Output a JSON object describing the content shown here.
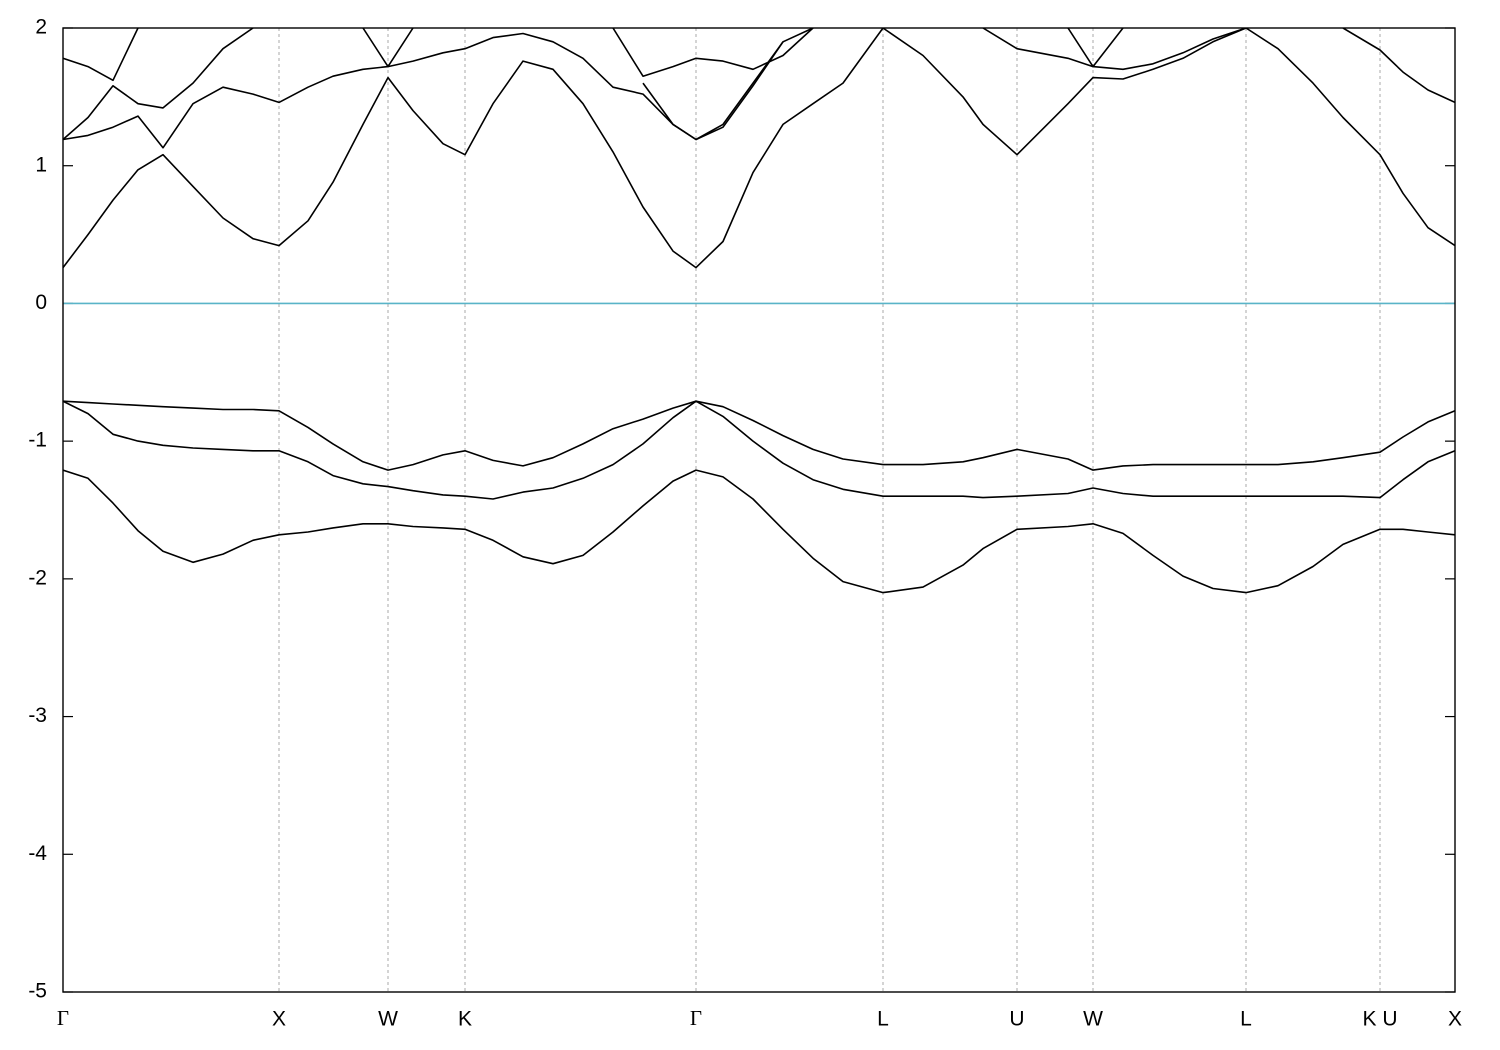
{
  "chart_data": {
    "type": "line",
    "x": [
      0,
      0.25,
      0.5,
      0.75,
      1.0,
      1.3,
      1.6,
      1.9,
      2.16,
      2.45,
      2.7,
      3.0,
      3.25,
      3.5,
      3.8,
      4.02,
      4.3,
      4.6,
      4.9,
      5.2,
      5.5,
      5.8,
      6.1,
      6.33,
      6.6,
      6.9,
      7.2,
      7.5,
      7.8,
      8.2,
      8.6,
      9.0,
      9.2,
      9.54,
      10.05,
      10.3,
      10.6,
      10.9,
      11.2,
      11.5,
      11.83,
      12.15,
      12.5,
      12.8,
      13.17,
      13.4,
      13.65,
      13.92
    ],
    "series": [
      {
        "color": "#000000",
        "values": [
          -0.71,
          -0.72,
          -0.73,
          -0.74,
          -0.75,
          -0.76,
          -0.77,
          -0.77,
          -0.78,
          -0.9,
          -1.02,
          -1.15,
          -1.21,
          -1.17,
          -1.1,
          -1.07,
          -1.14,
          -1.18,
          -1.12,
          -1.02,
          -0.91,
          -0.84,
          -0.76,
          -0.71,
          -0.75,
          -0.85,
          -0.96,
          -1.06,
          -1.13,
          -1.17,
          -1.17,
          -1.15,
          -1.12,
          -1.06,
          -1.13,
          -1.21,
          -1.18,
          -1.17,
          -1.17,
          -1.17,
          -1.17,
          -1.17,
          -1.15,
          -1.12,
          -1.08,
          -0.97,
          -0.86,
          -0.78
        ]
      },
      {
        "color": "#000000",
        "values": [
          -0.71,
          -0.8,
          -0.95,
          -1.0,
          -1.03,
          -1.05,
          -1.06,
          -1.07,
          -1.07,
          -1.15,
          -1.25,
          -1.31,
          -1.33,
          -1.36,
          -1.39,
          -1.4,
          -1.42,
          -1.37,
          -1.34,
          -1.27,
          -1.17,
          -1.02,
          -0.83,
          -0.71,
          -0.82,
          -1.0,
          -1.16,
          -1.28,
          -1.35,
          -1.4,
          -1.4,
          -1.4,
          -1.41,
          -1.4,
          -1.38,
          -1.34,
          -1.38,
          -1.4,
          -1.4,
          -1.4,
          -1.4,
          -1.4,
          -1.4,
          -1.4,
          -1.41,
          -1.28,
          -1.15,
          -1.07
        ]
      },
      {
        "color": "#000000",
        "values": [
          -1.21,
          -1.27,
          -1.45,
          -1.65,
          -1.8,
          -1.88,
          -1.82,
          -1.72,
          -1.68,
          -1.66,
          -1.63,
          -1.6,
          -1.6,
          -1.62,
          -1.63,
          -1.64,
          -1.72,
          -1.84,
          -1.89,
          -1.83,
          -1.66,
          -1.47,
          -1.29,
          -1.21,
          -1.26,
          -1.42,
          -1.64,
          -1.85,
          -2.02,
          -2.1,
          -2.06,
          -1.9,
          -1.78,
          -1.64,
          -1.62,
          -1.6,
          -1.67,
          -1.83,
          -1.98,
          -2.07,
          -2.1,
          -2.05,
          -1.91,
          -1.75,
          -1.64,
          -1.64,
          -1.66,
          -1.68
        ]
      },
      {
        "color": "#000000",
        "values": [
          0.26,
          0.5,
          0.75,
          0.97,
          1.08,
          0.85,
          0.62,
          0.47,
          0.42,
          0.6,
          0.88,
          1.3,
          1.64,
          1.4,
          1.16,
          1.08,
          1.45,
          1.76,
          1.7,
          1.45,
          1.1,
          0.7,
          0.38,
          0.26,
          0.45,
          0.95,
          1.3,
          1.45,
          1.6,
          2.0,
          1.8,
          1.5,
          1.3,
          1.08,
          1.45,
          1.64,
          1.63,
          1.7,
          1.78,
          1.9,
          2.0,
          1.85,
          1.6,
          1.35,
          1.08,
          0.8,
          0.55,
          0.42
        ]
      },
      {
        "color": "#000000",
        "values": [
          1.19,
          1.22,
          1.28,
          1.36,
          1.13,
          1.45,
          1.57,
          1.52,
          1.46,
          1.57,
          1.65,
          1.7,
          1.72,
          1.76,
          1.82,
          1.85,
          1.93,
          1.96,
          1.9,
          1.78,
          1.57,
          1.52,
          1.3,
          1.19,
          1.3,
          1.6,
          1.9,
          null,
          null,
          null,
          null,
          null,
          2.0,
          1.85,
          1.78,
          1.72,
          1.7,
          1.74,
          1.82,
          1.92,
          2.0,
          null,
          null,
          2.0,
          1.84,
          1.68,
          1.55,
          1.46
        ]
      },
      {
        "color": "#000000",
        "values": [
          1.78,
          1.72,
          1.62,
          2.0,
          null,
          null,
          null,
          null,
          null,
          null,
          null,
          2.0,
          1.72,
          2.0,
          null,
          null,
          null,
          null,
          null,
          null,
          2.0,
          1.65,
          1.72,
          1.78,
          1.76,
          1.7,
          1.8,
          2.0,
          null,
          null,
          null,
          null,
          null,
          null,
          2.0,
          1.72,
          2.0,
          null,
          null,
          null,
          null,
          null,
          null,
          null,
          null,
          null,
          null,
          null
        ]
      },
      {
        "color": "#000000",
        "values": [
          1.19,
          1.35,
          1.58,
          1.45,
          1.42,
          1.6,
          1.85,
          2.0,
          null,
          null,
          null,
          null,
          null,
          null,
          null,
          null,
          null,
          null,
          null,
          null,
          null,
          1.6,
          1.3,
          1.19,
          1.28,
          1.58,
          1.9,
          2.0,
          null,
          null,
          null,
          null,
          null,
          null,
          null,
          null,
          null,
          null,
          null,
          null,
          null,
          null,
          null,
          null,
          null,
          null,
          null,
          null
        ]
      }
    ],
    "reference_line": {
      "value": 0,
      "color": "#5ab4c8"
    },
    "xlim": [
      0,
      13.92
    ],
    "xticks": [
      {
        "value": 0,
        "label": "Γ"
      },
      {
        "value": 2.16,
        "label": "X"
      },
      {
        "value": 3.25,
        "label": "W"
      },
      {
        "value": 4.02,
        "label": "K"
      },
      {
        "value": 6.33,
        "label": "Γ"
      },
      {
        "value": 8.2,
        "label": "L"
      },
      {
        "value": 9.54,
        "label": "U"
      },
      {
        "value": 10.3,
        "label": "W"
      },
      {
        "value": 11.83,
        "label": "L"
      },
      {
        "value": 13.17,
        "label": "K U"
      },
      {
        "value": 13.92,
        "label": "X"
      }
    ],
    "ylim": [
      -5,
      2
    ],
    "yticks": [
      -5,
      -4,
      -3,
      -2,
      -1,
      0,
      1,
      2
    ],
    "grid": true
  }
}
